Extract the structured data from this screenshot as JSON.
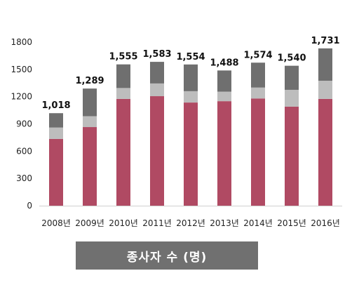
{
  "chart_data": {
    "type": "bar",
    "stacked": true,
    "categories": [
      "2008년",
      "2009년",
      "2010년",
      "2011년",
      "2012년",
      "2013년",
      "2014년",
      "2015년",
      "2016년"
    ],
    "series": [
      {
        "values": [
          735,
          865,
          1175,
          1205,
          1135,
          1150,
          1180,
          1090,
          1175
        ]
      },
      {
        "values": [
          125,
          120,
          120,
          140,
          125,
          105,
          120,
          185,
          200
        ]
      },
      {
        "values": [
          158,
          304,
          260,
          238,
          294,
          233,
          274,
          265,
          356
        ]
      }
    ],
    "totals": [
      "1,018",
      "1,289",
      "1,555",
      "1,583",
      "1,554",
      "1,488",
      "1,574",
      "1,540",
      "1,731"
    ],
    "yticks": [
      0,
      300,
      600,
      900,
      1200,
      1500,
      1800
    ],
    "ylim": [
      0,
      1800
    ],
    "grid": false,
    "colors": [
      "#b04a63",
      "#bdbdbd",
      "#6f6f6f"
    ]
  },
  "caption": "종사자 수 (명)"
}
